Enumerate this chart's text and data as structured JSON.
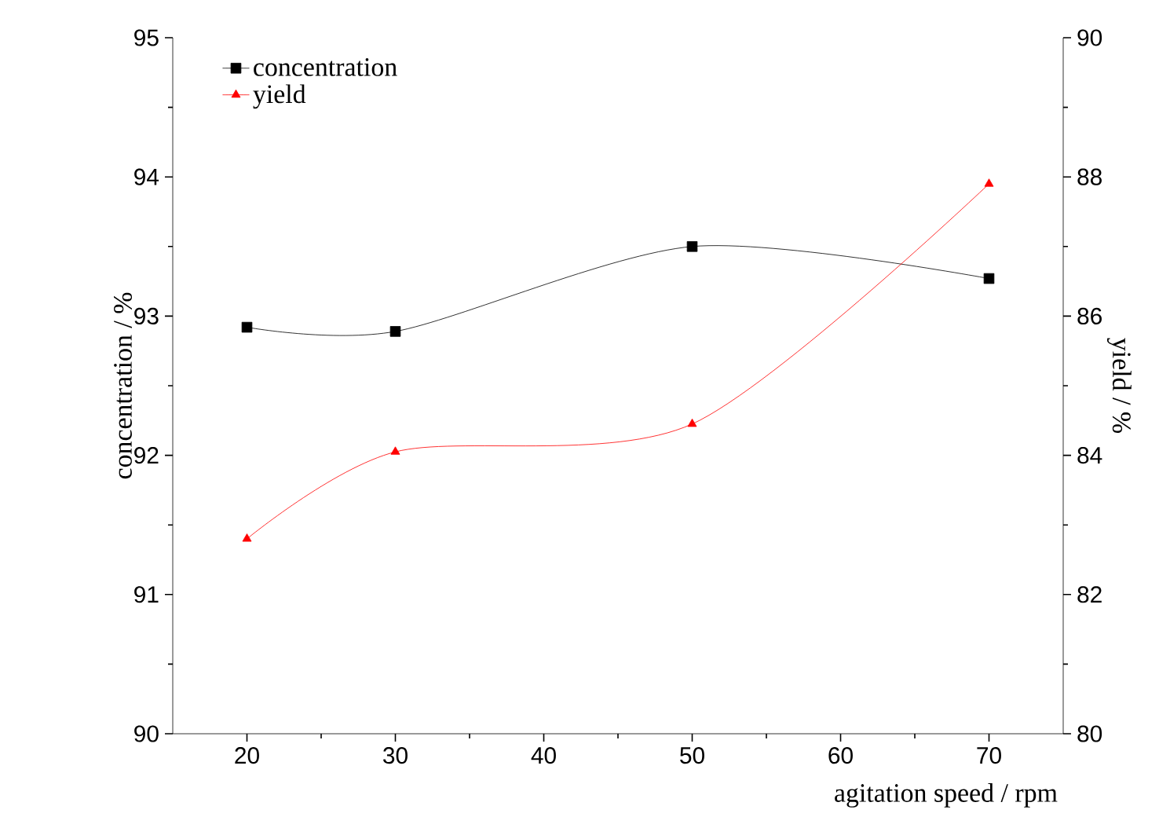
{
  "chart_data": {
    "type": "line",
    "xlabel": "agitation speed / rpm",
    "ylabel": "concentration / %",
    "y2label": "yield / %",
    "x": [
      20,
      30,
      50,
      70
    ],
    "series": [
      {
        "name": "concentration",
        "color": "#000000",
        "marker": "square",
        "values": [
          92.92,
          92.89,
          93.5,
          93.27
        ]
      },
      {
        "name": "yield",
        "color": "#ff0000",
        "marker": "triangle",
        "axis": "y2",
        "values": [
          82.8,
          84.05,
          84.45,
          87.9
        ]
      }
    ],
    "xlim": [
      15,
      75
    ],
    "xticks": [
      20,
      30,
      40,
      50,
      60,
      70
    ],
    "ylim": [
      90,
      95
    ],
    "yticks": [
      90,
      91,
      92,
      93,
      94,
      95
    ],
    "y2lim": [
      80,
      90
    ],
    "y2ticks": [
      80,
      82,
      84,
      86,
      88,
      90
    ],
    "legend": "top left",
    "grid": false
  }
}
